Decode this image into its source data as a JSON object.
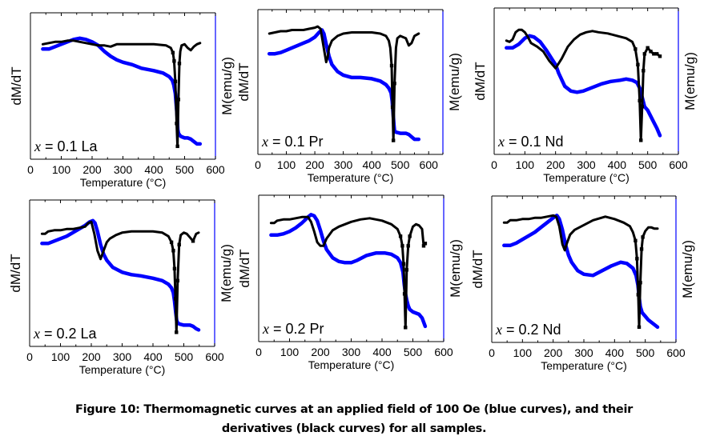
{
  "figure": {
    "caption_line1": "Figure 10: Thermomagnetic curves at an applied field of 100 Oe (blue curves), and their",
    "caption_line2": "derivatives (black curves) for all samples.",
    "colors": {
      "magnetization": "#0000ff",
      "derivative": "#000000",
      "right_axis": "#0000ff"
    }
  },
  "chart_data": [
    {
      "type": "line",
      "id": "x01La",
      "annotation": {
        "var": "x",
        "text": " = 0.1 La"
      },
      "xlabel": "Temperature (°C)",
      "ylabel_left": "dM/dT",
      "ylabel_right": "M(emu/g)",
      "xlim": [
        0,
        600
      ],
      "xticks": [
        0,
        100,
        200,
        300,
        400,
        500,
        600
      ],
      "ylim": [
        0,
        1
      ],
      "grid": false,
      "series": [
        {
          "name": "M",
          "color": "#0000ff",
          "x": [
            40,
            60,
            80,
            100,
            120,
            140,
            160,
            180,
            200,
            220,
            240,
            260,
            280,
            300,
            330,
            360,
            400,
            430,
            450,
            460,
            465,
            470,
            473,
            476,
            478,
            480,
            485,
            490,
            500,
            510,
            520,
            530,
            540,
            550
          ],
          "y": [
            0.82,
            0.82,
            0.84,
            0.86,
            0.88,
            0.9,
            0.91,
            0.9,
            0.88,
            0.85,
            0.8,
            0.76,
            0.73,
            0.71,
            0.69,
            0.66,
            0.64,
            0.62,
            0.59,
            0.56,
            0.52,
            0.45,
            0.35,
            0.25,
            0.15,
            0.12,
            0.1,
            0.09,
            0.08,
            0.08,
            0.07,
            0.05,
            0.03,
            0.03
          ]
        },
        {
          "name": "dM/dT",
          "color": "#000000",
          "x": [
            40,
            60,
            80,
            100,
            120,
            140,
            160,
            180,
            200,
            220,
            240,
            260,
            280,
            300,
            350,
            400,
            440,
            455,
            462,
            466,
            470,
            474,
            477,
            480,
            483,
            486,
            490,
            500,
            510,
            520,
            530,
            540,
            550
          ],
          "y": [
            0.86,
            0.87,
            0.88,
            0.88,
            0.89,
            0.89,
            0.88,
            0.87,
            0.86,
            0.85,
            0.85,
            0.84,
            0.86,
            0.86,
            0.86,
            0.86,
            0.85,
            0.83,
            0.79,
            0.72,
            0.55,
            0.2,
            0.01,
            0.4,
            0.7,
            0.8,
            0.85,
            0.86,
            0.83,
            0.81,
            0.84,
            0.86,
            0.87
          ]
        }
      ]
    },
    {
      "type": "line",
      "id": "x01Pr",
      "annotation": {
        "var": "x",
        "text": " = 0.1 Pr"
      },
      "xlabel": "Temperature (°C)",
      "ylabel_left": "dM/dT",
      "ylabel_right": "M(emu/g)",
      "xlim": [
        0,
        650
      ],
      "xticks": [
        0,
        100,
        200,
        300,
        400,
        500,
        600
      ],
      "ylim": [
        0,
        1
      ],
      "grid": false,
      "series": [
        {
          "name": "M",
          "color": "#0000ff",
          "x": [
            40,
            60,
            80,
            100,
            120,
            140,
            160,
            180,
            200,
            215,
            225,
            232,
            240,
            250,
            260,
            280,
            300,
            330,
            360,
            400,
            430,
            450,
            460,
            468,
            472,
            475,
            478,
            480,
            485,
            500,
            520,
            530,
            540,
            550,
            565
          ],
          "y": [
            0.75,
            0.75,
            0.76,
            0.78,
            0.8,
            0.82,
            0.84,
            0.86,
            0.89,
            0.93,
            0.95,
            0.92,
            0.83,
            0.73,
            0.66,
            0.6,
            0.57,
            0.55,
            0.55,
            0.54,
            0.52,
            0.49,
            0.46,
            0.42,
            0.35,
            0.25,
            0.15,
            0.1,
            0.09,
            0.08,
            0.08,
            0.07,
            0.05,
            0.03,
            0.03
          ]
        },
        {
          "name": "dM/dT",
          "color": "#000000",
          "x": [
            40,
            60,
            80,
            100,
            120,
            140,
            160,
            180,
            200,
            210,
            220,
            228,
            235,
            240,
            245,
            250,
            260,
            280,
            300,
            330,
            360,
            400,
            430,
            450,
            460,
            465,
            470,
            473,
            476,
            480,
            485,
            490,
            500,
            510,
            520,
            530,
            540,
            550,
            565
          ],
          "y": [
            0.92,
            0.93,
            0.94,
            0.94,
            0.95,
            0.95,
            0.95,
            0.96,
            0.97,
            0.98,
            0.96,
            0.85,
            0.75,
            0.68,
            0.72,
            0.8,
            0.86,
            0.9,
            0.92,
            0.93,
            0.93,
            0.93,
            0.92,
            0.9,
            0.86,
            0.8,
            0.65,
            0.3,
            0.02,
            0.5,
            0.8,
            0.88,
            0.9,
            0.89,
            0.88,
            0.82,
            0.84,
            0.9,
            0.92
          ]
        }
      ]
    },
    {
      "type": "line",
      "id": "x01Nd",
      "annotation": {
        "var": "x",
        "text": " = 0.1 Nd"
      },
      "xlabel": "Temperature (°C)",
      "ylabel_left": "dM/dT",
      "ylabel_right": "M(emu/g)",
      "xlim": [
        0,
        600
      ],
      "xticks": [
        0,
        100,
        200,
        300,
        400,
        500,
        600
      ],
      "ylim": [
        0,
        1
      ],
      "grid": false,
      "series": [
        {
          "name": "M",
          "color": "#0000ff",
          "x": [
            40,
            60,
            80,
            100,
            115,
            130,
            150,
            170,
            190,
            200,
            210,
            230,
            250,
            270,
            290,
            320,
            350,
            380,
            410,
            430,
            450,
            465,
            475,
            480,
            485,
            490,
            500,
            510,
            520,
            530,
            540
          ],
          "y": [
            0.79,
            0.79,
            0.82,
            0.87,
            0.89,
            0.88,
            0.84,
            0.77,
            0.69,
            0.65,
            0.58,
            0.47,
            0.43,
            0.42,
            0.43,
            0.46,
            0.49,
            0.51,
            0.52,
            0.53,
            0.52,
            0.5,
            0.45,
            0.4,
            0.35,
            0.3,
            0.27,
            0.22,
            0.17,
            0.12,
            0.06
          ]
        },
        {
          "name": "dM/dT",
          "color": "#000000",
          "x": [
            40,
            50,
            60,
            70,
            80,
            90,
            100,
            110,
            120,
            140,
            160,
            180,
            200,
            220,
            240,
            260,
            280,
            300,
            320,
            340,
            370,
            400,
            430,
            450,
            460,
            468,
            474,
            478,
            482,
            486,
            490,
            500,
            510,
            520,
            530,
            540
          ],
          "y": [
            0.85,
            0.84,
            0.86,
            0.92,
            0.94,
            0.94,
            0.92,
            0.88,
            0.83,
            0.8,
            0.76,
            0.68,
            0.62,
            0.7,
            0.8,
            0.86,
            0.9,
            0.92,
            0.93,
            0.92,
            0.91,
            0.89,
            0.87,
            0.84,
            0.78,
            0.65,
            0.35,
            0.02,
            0.3,
            0.6,
            0.74,
            0.79,
            0.76,
            0.74,
            0.74,
            0.72
          ]
        }
      ]
    },
    {
      "type": "line",
      "id": "x02La",
      "annotation": {
        "var": "x",
        "text": " = 0.2 La"
      },
      "xlabel": "Temperature (°C)",
      "ylabel_left": "dM/dT",
      "ylabel_right": "M(emu/g)",
      "xlim": [
        0,
        600
      ],
      "xticks": [
        0,
        100,
        200,
        300,
        400,
        500,
        600
      ],
      "ylim": [
        0,
        1
      ],
      "grid": false,
      "series": [
        {
          "name": "M",
          "color": "#0000ff",
          "x": [
            40,
            60,
            80,
            100,
            120,
            140,
            160,
            180,
            195,
            205,
            212,
            220,
            230,
            240,
            250,
            270,
            300,
            330,
            360,
            400,
            430,
            450,
            460,
            466,
            470,
            474,
            477,
            480,
            485,
            500,
            520,
            530,
            540,
            548
          ],
          "y": [
            0.76,
            0.76,
            0.78,
            0.8,
            0.82,
            0.85,
            0.88,
            0.91,
            0.94,
            0.95,
            0.93,
            0.86,
            0.75,
            0.67,
            0.62,
            0.56,
            0.52,
            0.5,
            0.49,
            0.47,
            0.45,
            0.42,
            0.39,
            0.35,
            0.28,
            0.18,
            0.12,
            0.1,
            0.09,
            0.08,
            0.08,
            0.07,
            0.05,
            0.04
          ]
        },
        {
          "name": "dM/dT",
          "color": "#000000",
          "x": [
            40,
            50,
            60,
            80,
            100,
            120,
            140,
            160,
            180,
            190,
            200,
            210,
            220,
            230,
            240,
            250,
            260,
            280,
            300,
            330,
            360,
            400,
            430,
            450,
            460,
            466,
            470,
            473,
            476,
            480,
            485,
            490,
            500,
            510,
            520,
            530,
            540,
            548
          ],
          "y": [
            0.84,
            0.84,
            0.86,
            0.87,
            0.87,
            0.88,
            0.88,
            0.89,
            0.9,
            0.93,
            0.94,
            0.84,
            0.7,
            0.63,
            0.7,
            0.77,
            0.8,
            0.83,
            0.85,
            0.86,
            0.86,
            0.86,
            0.85,
            0.82,
            0.77,
            0.7,
            0.55,
            0.3,
            0.02,
            0.45,
            0.75,
            0.83,
            0.85,
            0.84,
            0.81,
            0.78,
            0.84,
            0.85
          ]
        }
      ]
    },
    {
      "type": "line",
      "id": "x02Pr",
      "annotation": {
        "var": "x",
        "text": " = 0.2 Pr"
      },
      "xlabel": "Temperature (°C)",
      "ylabel_left": "dM/dT",
      "ylabel_right": "M(emu/g)",
      "xlim": [
        0,
        600
      ],
      "xticks": [
        0,
        100,
        200,
        300,
        400,
        500,
        600
      ],
      "ylim": [
        0,
        1
      ],
      "grid": false,
      "series": [
        {
          "name": "M",
          "color": "#0000ff",
          "x": [
            40,
            60,
            80,
            100,
            120,
            140,
            160,
            170,
            180,
            190,
            200,
            210,
            220,
            240,
            260,
            280,
            300,
            320,
            350,
            380,
            410,
            430,
            450,
            460,
            468,
            472,
            476,
            480,
            485,
            490,
            500,
            510,
            520,
            530,
            540
          ],
          "y": [
            0.79,
            0.79,
            0.8,
            0.82,
            0.85,
            0.89,
            0.94,
            0.96,
            0.95,
            0.91,
            0.83,
            0.74,
            0.67,
            0.6,
            0.57,
            0.56,
            0.56,
            0.58,
            0.62,
            0.64,
            0.64,
            0.63,
            0.6,
            0.56,
            0.48,
            0.38,
            0.3,
            0.25,
            0.2,
            0.17,
            0.15,
            0.14,
            0.13,
            0.1,
            0.03
          ]
        },
        {
          "name": "dM/dT",
          "color": "#000000",
          "x": [
            40,
            50,
            60,
            80,
            100,
            120,
            140,
            160,
            170,
            180,
            190,
            200,
            210,
            220,
            240,
            260,
            280,
            300,
            330,
            360,
            400,
            430,
            450,
            460,
            466,
            470,
            473,
            476,
            480,
            485,
            490,
            500,
            510,
            520,
            530,
            535,
            540
          ],
          "y": [
            0.89,
            0.89,
            0.91,
            0.92,
            0.92,
            0.93,
            0.94,
            0.94,
            0.9,
            0.82,
            0.73,
            0.7,
            0.7,
            0.76,
            0.83,
            0.86,
            0.88,
            0.9,
            0.92,
            0.93,
            0.91,
            0.88,
            0.84,
            0.78,
            0.7,
            0.55,
            0.3,
            0.02,
            0.5,
            0.7,
            0.78,
            0.86,
            0.88,
            0.87,
            0.84,
            0.7,
            0.72
          ]
        }
      ]
    },
    {
      "type": "line",
      "id": "x02Nd",
      "annotation": {
        "var": "x",
        "text": " = 0.2 Nd"
      },
      "xlabel": "Temperature (°C)",
      "ylabel_left": "dM/dT",
      "ylabel_right": "M(emu/g)",
      "xlim": [
        0,
        600
      ],
      "xticks": [
        0,
        100,
        200,
        300,
        400,
        500,
        600
      ],
      "ylim": [
        0,
        1
      ],
      "grid": false,
      "series": [
        {
          "name": "M",
          "color": "#0000ff",
          "x": [
            40,
            60,
            80,
            100,
            120,
            140,
            160,
            180,
            200,
            212,
            220,
            230,
            240,
            250,
            260,
            280,
            300,
            330,
            360,
            390,
            420,
            440,
            460,
            470,
            476,
            480,
            484,
            490,
            500,
            510,
            520,
            530,
            540
          ],
          "y": [
            0.71,
            0.71,
            0.73,
            0.76,
            0.79,
            0.82,
            0.86,
            0.9,
            0.94,
            0.96,
            0.93,
            0.84,
            0.72,
            0.63,
            0.57,
            0.5,
            0.47,
            0.46,
            0.5,
            0.54,
            0.57,
            0.56,
            0.52,
            0.46,
            0.38,
            0.28,
            0.2,
            0.15,
            0.12,
            0.09,
            0.07,
            0.05,
            0.03
          ]
        },
        {
          "name": "dM/dT",
          "color": "#000000",
          "x": [
            40,
            50,
            60,
            80,
            100,
            120,
            140,
            160,
            180,
            200,
            210,
            220,
            230,
            238,
            245,
            255,
            270,
            300,
            330,
            370,
            400,
            430,
            450,
            460,
            468,
            473,
            477,
            480,
            484,
            488,
            492,
            500,
            510,
            520,
            530,
            540
          ],
          "y": [
            0.9,
            0.9,
            0.92,
            0.92,
            0.93,
            0.93,
            0.94,
            0.94,
            0.95,
            0.96,
            0.95,
            0.87,
            0.72,
            0.67,
            0.73,
            0.8,
            0.84,
            0.88,
            0.92,
            0.95,
            0.93,
            0.9,
            0.87,
            0.82,
            0.75,
            0.6,
            0.3,
            0.03,
            0.4,
            0.68,
            0.78,
            0.83,
            0.86,
            0.86,
            0.85,
            0.85
          ]
        }
      ]
    }
  ]
}
